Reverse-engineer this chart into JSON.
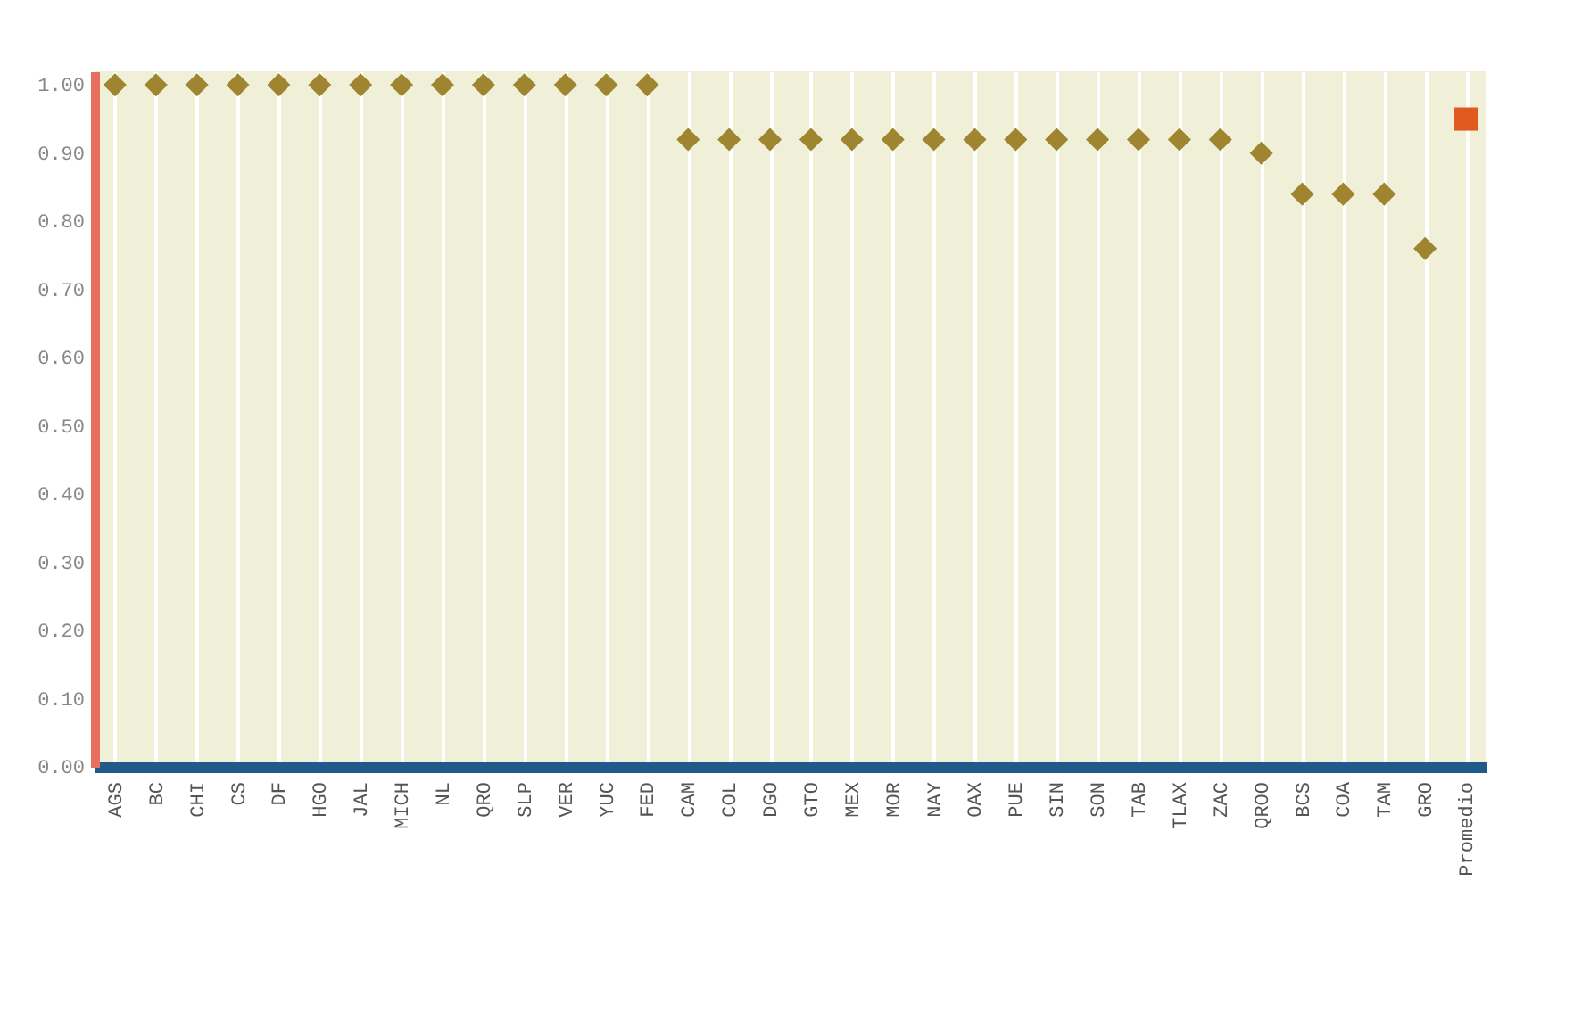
{
  "chart_data": {
    "type": "scatter",
    "categories": [
      "AGS",
      "BC",
      "CHI",
      "CS",
      "DF",
      "HGO",
      "JAL",
      "MICH",
      "NL",
      "QRO",
      "SLP",
      "VER",
      "YUC",
      "FED",
      "CAM",
      "COL",
      "DGO",
      "GTO",
      "MEX",
      "MOR",
      "NAY",
      "OAX",
      "PUE",
      "SIN",
      "SON",
      "TAB",
      "TLAX",
      "ZAC",
      "QROO",
      "BCS",
      "COA",
      "TAM",
      "GRO",
      "Promedio"
    ],
    "series": [
      {
        "color": "#a08530",
        "marker": "diamond",
        "values": [
          1.0,
          1.0,
          1.0,
          1.0,
          1.0,
          1.0,
          1.0,
          1.0,
          1.0,
          1.0,
          1.0,
          1.0,
          1.0,
          1.0,
          0.92,
          0.92,
          0.92,
          0.92,
          0.92,
          0.92,
          0.92,
          0.92,
          0.92,
          0.92,
          0.92,
          0.92,
          0.92,
          0.92,
          0.9,
          0.84,
          0.84,
          0.84,
          0.76,
          null
        ]
      },
      {
        "color": "#e05a20",
        "marker": "square",
        "values": [
          null,
          null,
          null,
          null,
          null,
          null,
          null,
          null,
          null,
          null,
          null,
          null,
          null,
          null,
          null,
          null,
          null,
          null,
          null,
          null,
          null,
          null,
          null,
          null,
          null,
          null,
          null,
          null,
          null,
          null,
          null,
          null,
          null,
          0.95
        ]
      }
    ],
    "ylim": [
      0,
      1.02
    ],
    "yticks": [
      {
        "value": 0,
        "label": "0.00"
      },
      {
        "value": 0.1,
        "label": "0.10"
      },
      {
        "value": 0.2,
        "label": "0.20"
      },
      {
        "value": 0.3,
        "label": "0.30"
      },
      {
        "value": 0.4,
        "label": "0.40"
      },
      {
        "value": 0.5,
        "label": "0.50"
      },
      {
        "value": 0.6,
        "label": "0.60"
      },
      {
        "value": 0.7,
        "label": "0.70"
      },
      {
        "value": 0.8,
        "label": "0.80"
      },
      {
        "value": 0.9,
        "label": "0.90"
      },
      {
        "value": 1.0,
        "label": "1.00"
      }
    ],
    "grid": "x",
    "legend": false
  }
}
